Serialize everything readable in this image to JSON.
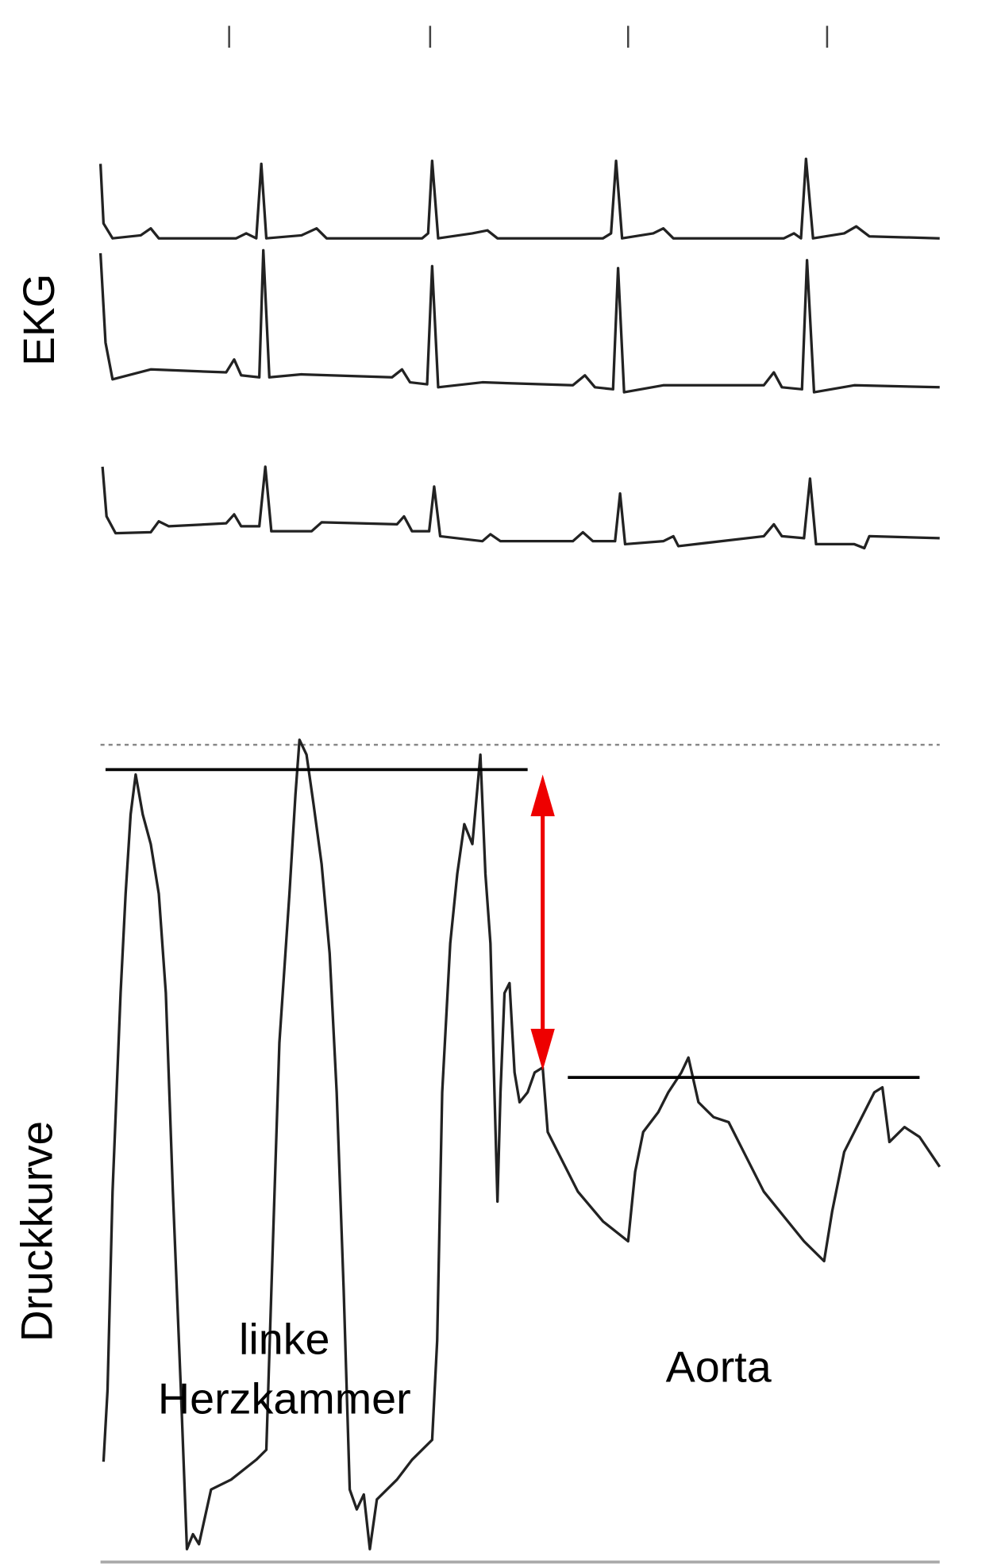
{
  "labels": {
    "ekg": "EKG",
    "pressure": "Druckkurve",
    "ventricle": [
      "linke",
      "Herzkammer"
    ],
    "aorta": "Aorta"
  }
}
